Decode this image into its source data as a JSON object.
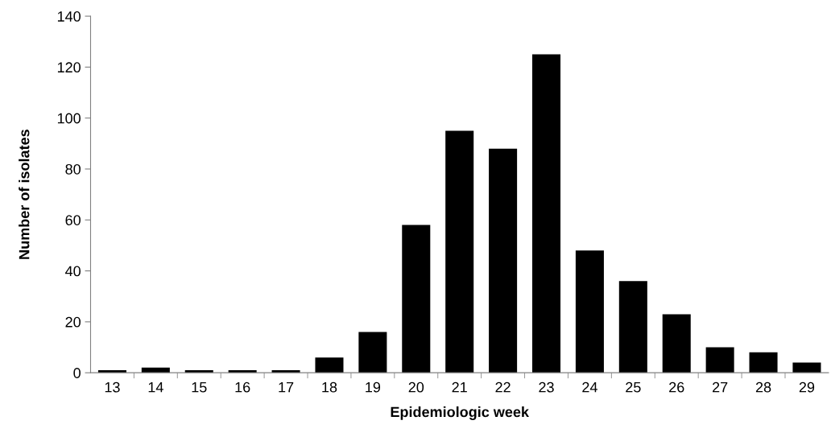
{
  "chart_data": {
    "type": "bar",
    "xlabel": "Epidemiologic week",
    "ylabel": "Number of isolates",
    "categories": [
      "13",
      "14",
      "15",
      "16",
      "17",
      "18",
      "19",
      "20",
      "21",
      "22",
      "23",
      "24",
      "25",
      "26",
      "27",
      "28",
      "29"
    ],
    "values": [
      1,
      2,
      1,
      1,
      1,
      6,
      16,
      58,
      95,
      88,
      125,
      48,
      36,
      23,
      10,
      8,
      4
    ],
    "color": "#000000",
    "ylim": [
      0,
      140
    ],
    "yticks": [
      0,
      20,
      40,
      60,
      80,
      100,
      120,
      140
    ],
    "grid": false,
    "legend": false
  }
}
